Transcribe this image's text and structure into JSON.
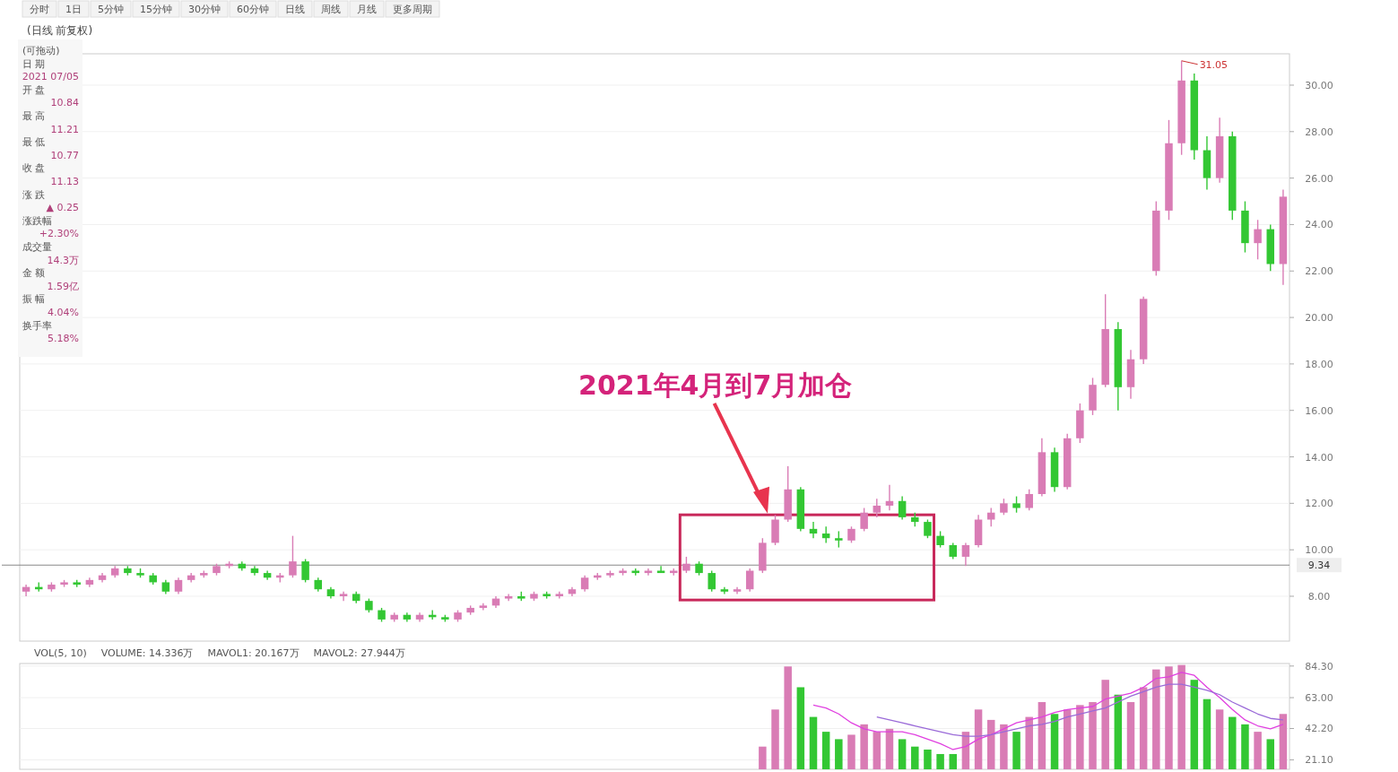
{
  "chart_data": [
    {
      "type": "candlestick",
      "title": "(日线 前复权)",
      "grid": "y",
      "categories": [
        null,
        null,
        null,
        null,
        null,
        null,
        null,
        null,
        null,
        null,
        null,
        null,
        null,
        null,
        null,
        null,
        null,
        null,
        null,
        null,
        null,
        null,
        null,
        null,
        null,
        null,
        null,
        null,
        null,
        null,
        null,
        null,
        null,
        null,
        null,
        null,
        null,
        null,
        null,
        null,
        null,
        null,
        null,
        null,
        null,
        null,
        null,
        null,
        null,
        null,
        null,
        null,
        null,
        null,
        null,
        null,
        null,
        null,
        null,
        null,
        null,
        null,
        null,
        null,
        null,
        null,
        null,
        null,
        null,
        null,
        null,
        null,
        null,
        null,
        null,
        null,
        null,
        null,
        null,
        null,
        null,
        null,
        null,
        null,
        null,
        null,
        null,
        null,
        null,
        null,
        null,
        null,
        null,
        null,
        null,
        null,
        null,
        null,
        null,
        null
      ],
      "ohlc": [
        [
          8.2,
          8.5,
          8.0,
          8.4
        ],
        [
          8.4,
          8.6,
          8.2,
          8.3
        ],
        [
          8.3,
          8.6,
          8.2,
          8.5
        ],
        [
          8.5,
          8.7,
          8.4,
          8.6
        ],
        [
          8.6,
          8.7,
          8.4,
          8.5
        ],
        [
          8.5,
          8.8,
          8.4,
          8.7
        ],
        [
          8.7,
          9.0,
          8.6,
          8.9
        ],
        [
          8.9,
          9.3,
          8.8,
          9.2
        ],
        [
          9.2,
          9.3,
          8.9,
          9.0
        ],
        [
          9.0,
          9.2,
          8.8,
          8.9
        ],
        [
          8.9,
          9.0,
          8.5,
          8.6
        ],
        [
          8.6,
          8.7,
          8.1,
          8.2
        ],
        [
          8.2,
          8.8,
          8.1,
          8.7
        ],
        [
          8.7,
          9.0,
          8.6,
          8.9
        ],
        [
          8.9,
          9.1,
          8.8,
          9.0
        ],
        [
          9.0,
          9.4,
          8.9,
          9.3
        ],
        [
          9.3,
          9.5,
          9.2,
          9.4
        ],
        [
          9.4,
          9.5,
          9.1,
          9.2
        ],
        [
          9.2,
          9.3,
          8.9,
          9.0
        ],
        [
          9.0,
          9.1,
          8.7,
          8.8
        ],
        [
          8.8,
          9.0,
          8.6,
          8.9
        ],
        [
          8.9,
          10.6,
          8.8,
          9.5
        ],
        [
          9.5,
          9.6,
          8.6,
          8.7
        ],
        [
          8.7,
          8.8,
          8.2,
          8.3
        ],
        [
          8.3,
          8.4,
          7.9,
          8.0
        ],
        [
          8.0,
          8.2,
          7.8,
          8.1
        ],
        [
          8.1,
          8.2,
          7.7,
          7.8
        ],
        [
          7.8,
          7.9,
          7.3,
          7.4
        ],
        [
          7.4,
          7.5,
          6.9,
          7.0
        ],
        [
          7.0,
          7.3,
          6.9,
          7.2
        ],
        [
          7.2,
          7.3,
          6.9,
          7.0
        ],
        [
          7.0,
          7.3,
          6.9,
          7.2
        ],
        [
          7.2,
          7.4,
          7.0,
          7.1
        ],
        [
          7.1,
          7.2,
          6.9,
          7.0
        ],
        [
          7.0,
          7.4,
          6.9,
          7.3
        ],
        [
          7.3,
          7.6,
          7.2,
          7.5
        ],
        [
          7.5,
          7.7,
          7.4,
          7.6
        ],
        [
          7.6,
          8.0,
          7.5,
          7.9
        ],
        [
          7.9,
          8.1,
          7.8,
          8.0
        ],
        [
          8.0,
          8.2,
          7.8,
          7.9
        ],
        [
          7.9,
          8.2,
          7.8,
          8.1
        ],
        [
          8.1,
          8.2,
          7.9,
          8.0
        ],
        [
          8.0,
          8.2,
          7.9,
          8.1
        ],
        [
          8.1,
          8.4,
          8.0,
          8.3
        ],
        [
          8.3,
          8.9,
          8.2,
          8.8
        ],
        [
          8.8,
          9.0,
          8.7,
          8.9
        ],
        [
          8.9,
          9.1,
          8.8,
          9.0
        ],
        [
          9.0,
          9.2,
          8.9,
          9.1
        ],
        [
          9.1,
          9.2,
          8.9,
          9.0
        ],
        [
          9.0,
          9.2,
          8.9,
          9.1
        ],
        [
          9.1,
          9.3,
          9.0,
          9.0
        ],
        [
          9.0,
          9.2,
          8.9,
          9.1
        ],
        [
          9.1,
          9.7,
          9.0,
          9.4
        ],
        [
          9.4,
          9.5,
          8.9,
          9.0
        ],
        [
          9.0,
          9.1,
          8.2,
          8.3
        ],
        [
          8.3,
          8.4,
          8.1,
          8.2
        ],
        [
          8.2,
          8.4,
          8.1,
          8.3
        ],
        [
          8.3,
          9.2,
          8.2,
          9.1
        ],
        [
          9.1,
          10.5,
          9.0,
          10.3
        ],
        [
          10.3,
          11.5,
          10.2,
          11.3
        ],
        [
          11.3,
          13.6,
          11.2,
          12.6
        ],
        [
          12.6,
          12.7,
          10.8,
          10.9
        ],
        [
          10.9,
          11.2,
          10.5,
          10.7
        ],
        [
          10.7,
          11.0,
          10.3,
          10.5
        ],
        [
          10.5,
          10.8,
          10.1,
          10.4
        ],
        [
          10.4,
          11.0,
          10.3,
          10.9
        ],
        [
          10.9,
          11.8,
          10.8,
          11.6
        ],
        [
          11.6,
          12.2,
          11.4,
          11.9
        ],
        [
          11.9,
          12.8,
          11.7,
          12.1
        ],
        [
          12.1,
          12.3,
          11.3,
          11.4
        ],
        [
          11.4,
          11.6,
          11.0,
          11.2
        ],
        [
          11.2,
          11.3,
          10.5,
          10.6
        ],
        [
          10.6,
          10.8,
          10.1,
          10.2
        ],
        [
          10.2,
          10.3,
          9.6,
          9.7
        ],
        [
          9.7,
          10.3,
          9.3,
          10.2
        ],
        [
          10.2,
          11.5,
          10.1,
          11.3
        ],
        [
          11.3,
          11.8,
          11.0,
          11.6
        ],
        [
          11.6,
          12.2,
          11.5,
          12.0
        ],
        [
          12.0,
          12.3,
          11.6,
          11.8
        ],
        [
          11.8,
          12.6,
          11.7,
          12.4
        ],
        [
          12.4,
          14.8,
          12.3,
          14.2
        ],
        [
          14.2,
          14.4,
          12.5,
          12.7
        ],
        [
          12.7,
          15.0,
          12.6,
          14.8
        ],
        [
          14.8,
          16.3,
          14.6,
          16.0
        ],
        [
          16.0,
          17.4,
          15.8,
          17.1
        ],
        [
          17.1,
          21.0,
          17.0,
          19.5
        ],
        [
          19.5,
          19.8,
          16.0,
          17.0
        ],
        [
          17.0,
          18.6,
          16.5,
          18.2
        ],
        [
          18.2,
          20.9,
          18.0,
          20.8
        ],
        [
          22.0,
          25.0,
          21.8,
          24.6
        ],
        [
          24.6,
          28.5,
          24.2,
          27.5
        ],
        [
          27.5,
          31.05,
          27.0,
          30.2
        ],
        [
          30.2,
          30.5,
          26.8,
          27.2
        ],
        [
          27.2,
          27.8,
          25.5,
          26.0
        ],
        [
          26.0,
          28.6,
          25.8,
          27.8
        ],
        [
          27.8,
          28.0,
          24.2,
          24.6
        ],
        [
          24.6,
          25.0,
          22.8,
          23.2
        ],
        [
          23.2,
          24.2,
          22.5,
          23.8
        ],
        [
          23.8,
          24.0,
          22.0,
          22.3
        ],
        [
          22.3,
          25.5,
          21.4,
          25.2
        ]
      ],
      "colors": [
        "#d97cb5",
        "#33c733",
        "#d97cb5",
        "#d97cb5",
        "#33c733",
        "#d97cb5",
        "#d97cb5",
        "#d97cb5",
        "#33c733",
        "#33c733",
        "#33c733",
        "#33c733",
        "#d97cb5",
        "#d97cb5",
        "#d97cb5",
        "#d97cb5",
        "#d97cb5",
        "#33c733",
        "#33c733",
        "#33c733",
        "#d97cb5",
        "#d97cb5",
        "#33c733",
        "#33c733",
        "#33c733",
        "#d97cb5",
        "#33c733",
        "#33c733",
        "#33c733",
        "#d97cb5",
        "#33c733",
        "#d97cb5",
        "#33c733",
        "#33c733",
        "#d97cb5",
        "#d97cb5",
        "#d97cb5",
        "#d97cb5",
        "#d97cb5",
        "#33c733",
        "#d97cb5",
        "#33c733",
        "#d97cb5",
        "#d97cb5",
        "#d97cb5",
        "#d97cb5",
        "#d97cb5",
        "#d97cb5",
        "#33c733",
        "#d97cb5",
        "#33c733",
        "#d97cb5",
        "#d97cb5",
        "#33c733",
        "#33c733",
        "#33c733",
        "#d97cb5",
        "#d97cb5",
        "#d97cb5",
        "#d97cb5",
        "#d97cb5",
        "#33c733",
        "#33c733",
        "#33c733",
        "#33c733",
        "#d97cb5",
        "#d97cb5",
        "#d97cb5",
        "#d97cb5",
        "#33c733",
        "#33c733",
        "#33c733",
        "#33c733",
        "#33c733",
        "#d97cb5",
        "#d97cb5",
        "#d97cb5",
        "#d97cb5",
        "#33c733",
        "#d97cb5",
        "#d97cb5",
        "#33c733",
        "#d97cb5",
        "#d97cb5",
        "#d97cb5",
        "#d97cb5",
        "#33c733",
        "#d97cb5",
        "#d97cb5",
        "#d97cb5",
        "#d97cb5",
        "#d97cb5",
        "#33c733",
        "#33c733",
        "#d97cb5",
        "#33c733",
        "#33c733",
        "#d97cb5",
        "#33c733",
        "#d97cb5"
      ],
      "ylim": [
        6.07,
        31.35
      ],
      "yticks": [
        {
          "value": 8,
          "label": "8.00"
        },
        {
          "value": 10,
          "label": "10.00"
        },
        {
          "value": 12,
          "label": "12.00"
        },
        {
          "value": 14,
          "label": "14.00"
        },
        {
          "value": 16,
          "label": "16.00"
        },
        {
          "value": 18,
          "label": "18.00"
        },
        {
          "value": 20,
          "label": "20.00"
        },
        {
          "value": 22,
          "label": "22.00"
        },
        {
          "value": 24,
          "label": "24.00"
        },
        {
          "value": 26,
          "label": "26.00"
        },
        {
          "value": 28,
          "label": "28.00"
        },
        {
          "value": 30,
          "label": "30.00"
        }
      ],
      "ref_lines": [
        {
          "axis": "y",
          "value": 9.34,
          "label": "9.34",
          "color": "#888888"
        }
      ],
      "annotations": [
        "2021年4月到7月加仓",
        "31.05"
      ]
    },
    {
      "type": "bar",
      "grid": "y",
      "categories": [
        null,
        null,
        null,
        null,
        null,
        null,
        null,
        null,
        null,
        null,
        null,
        null,
        null,
        null,
        null,
        null,
        null,
        null,
        null,
        null,
        null,
        null,
        null,
        null,
        null,
        null,
        null,
        null,
        null,
        null,
        null,
        null,
        null,
        null,
        null,
        null,
        null,
        null,
        null,
        null,
        null,
        null,
        null,
        null,
        null,
        null,
        null,
        null,
        null,
        null,
        null,
        null,
        null,
        null,
        null,
        null,
        null,
        null,
        null,
        null,
        null,
        null,
        null,
        null,
        null,
        null,
        null,
        null,
        null,
        null,
        null,
        null,
        null,
        null,
        null,
        null,
        null,
        null,
        null,
        null,
        null,
        null,
        null,
        null,
        null,
        null,
        null,
        null,
        null,
        null,
        null,
        null,
        null,
        null,
        null,
        null,
        null,
        null,
        null,
        null
      ],
      "series": [
        {
          "type": "bar",
          "values": [
            null,
            null,
            null,
            null,
            null,
            null,
            null,
            null,
            null,
            null,
            null,
            null,
            null,
            null,
            null,
            null,
            null,
            null,
            null,
            null,
            null,
            null,
            null,
            null,
            null,
            null,
            null,
            null,
            null,
            null,
            null,
            null,
            null,
            null,
            null,
            null,
            null,
            null,
            null,
            null,
            null,
            null,
            null,
            null,
            null,
            null,
            null,
            null,
            null,
            null,
            null,
            null,
            null,
            null,
            null,
            null,
            null,
            null,
            30,
            55,
            84,
            70,
            50,
            40,
            35,
            38,
            45,
            40,
            42,
            35,
            30,
            28,
            25,
            25,
            40,
            55,
            48,
            45,
            40,
            50,
            60,
            52,
            55,
            58,
            60,
            75,
            65,
            60,
            70,
            82,
            84,
            85,
            75,
            62,
            55,
            50,
            45,
            40,
            35,
            52
          ],
          "colors": [
            null,
            null,
            null,
            null,
            null,
            null,
            null,
            null,
            null,
            null,
            null,
            null,
            null,
            null,
            null,
            null,
            null,
            null,
            null,
            null,
            null,
            null,
            null,
            null,
            null,
            null,
            null,
            null,
            null,
            null,
            null,
            null,
            null,
            null,
            null,
            null,
            null,
            null,
            null,
            null,
            null,
            null,
            null,
            null,
            null,
            null,
            null,
            null,
            null,
            null,
            null,
            null,
            null,
            null,
            null,
            null,
            null,
            null,
            "#d97cb5",
            "#d97cb5",
            "#d97cb5",
            "#33c733",
            "#33c733",
            "#33c733",
            "#33c733",
            "#d97cb5",
            "#d97cb5",
            "#d97cb5",
            "#d97cb5",
            "#33c733",
            "#33c733",
            "#33c733",
            "#33c733",
            "#33c733",
            "#d97cb5",
            "#d97cb5",
            "#d97cb5",
            "#d97cb5",
            "#33c733",
            "#d97cb5",
            "#d97cb5",
            "#33c733",
            "#d97cb5",
            "#d97cb5",
            "#d97cb5",
            "#d97cb5",
            "#33c733",
            "#d97cb5",
            "#d97cb5",
            "#d97cb5",
            "#d97cb5",
            "#d97cb5",
            "#33c733",
            "#33c733",
            "#d97cb5",
            "#33c733",
            "#33c733",
            "#d97cb5",
            "#33c733",
            "#d97cb5"
          ]
        },
        {
          "type": "line",
          "color": "#e040e0",
          "values": [
            null,
            null,
            null,
            null,
            null,
            null,
            null,
            null,
            null,
            null,
            null,
            null,
            null,
            null,
            null,
            null,
            null,
            null,
            null,
            null,
            null,
            null,
            null,
            null,
            null,
            null,
            null,
            null,
            null,
            null,
            null,
            null,
            null,
            null,
            null,
            null,
            null,
            null,
            null,
            null,
            null,
            null,
            null,
            null,
            null,
            null,
            null,
            null,
            null,
            null,
            null,
            null,
            null,
            null,
            null,
            null,
            null,
            null,
            null,
            null,
            null,
            null,
            58,
            56,
            52,
            46,
            42,
            40,
            40,
            40,
            38,
            35,
            32,
            28,
            30,
            35,
            38,
            42,
            46,
            48,
            50,
            53,
            55,
            56,
            57,
            62,
            64,
            66,
            70,
            76,
            77,
            80,
            78,
            70,
            63,
            55,
            48,
            44,
            42,
            45
          ]
        },
        {
          "type": "line",
          "color": "#9a6ad8",
          "values": [
            null,
            null,
            null,
            null,
            null,
            null,
            null,
            null,
            null,
            null,
            null,
            null,
            null,
            null,
            null,
            null,
            null,
            null,
            null,
            null,
            null,
            null,
            null,
            null,
            null,
            null,
            null,
            null,
            null,
            null,
            null,
            null,
            null,
            null,
            null,
            null,
            null,
            null,
            null,
            null,
            null,
            null,
            null,
            null,
            null,
            null,
            null,
            null,
            null,
            null,
            null,
            null,
            null,
            null,
            null,
            null,
            null,
            null,
            null,
            null,
            null,
            null,
            null,
            null,
            null,
            null,
            null,
            50,
            48,
            46,
            44,
            42,
            40,
            38,
            37,
            37,
            38,
            40,
            42,
            44,
            45,
            47,
            50,
            52,
            54,
            56,
            60,
            64,
            67,
            70,
            72,
            72,
            70,
            68,
            65,
            60,
            56,
            52,
            49,
            48
          ]
        }
      ],
      "ylim": [
        14.7,
        86.0
      ],
      "yticks": [
        {
          "value": 21.1,
          "label": "21.10"
        },
        {
          "value": 42.2,
          "label": "42.20"
        },
        {
          "value": 63.0,
          "label": "63.00"
        },
        {
          "value": 84.3,
          "label": "84.30"
        }
      ],
      "annotations": [
        "VOL(5, 10)",
        "VOLUME: 14.336万",
        "MAVOL1: 20.167万",
        "MAVOL2: 27.944万"
      ]
    },
    {
      "type": "other",
      "annotations": [
        "分时",
        "1日",
        "5分钟",
        "15分钟",
        "30分钟",
        "60分钟",
        "日线",
        "周线",
        "月线",
        "更多周期"
      ]
    },
    {
      "type": "other",
      "annotations": [
        "(可拖动)",
        "日  期",
        "2021 07/05",
        "开  盘",
        "10.84",
        "最  高",
        "11.21",
        "最  低",
        "10.77",
        "收  盘",
        "11.13",
        "涨  跌",
        "▲ 0.25",
        "涨跌幅",
        "+2.30%",
        "成交量",
        "14.3万",
        "金  额",
        "1.59亿",
        "振  幅",
        "4.04%",
        "换手率",
        "5.18%"
      ]
    }
  ]
}
